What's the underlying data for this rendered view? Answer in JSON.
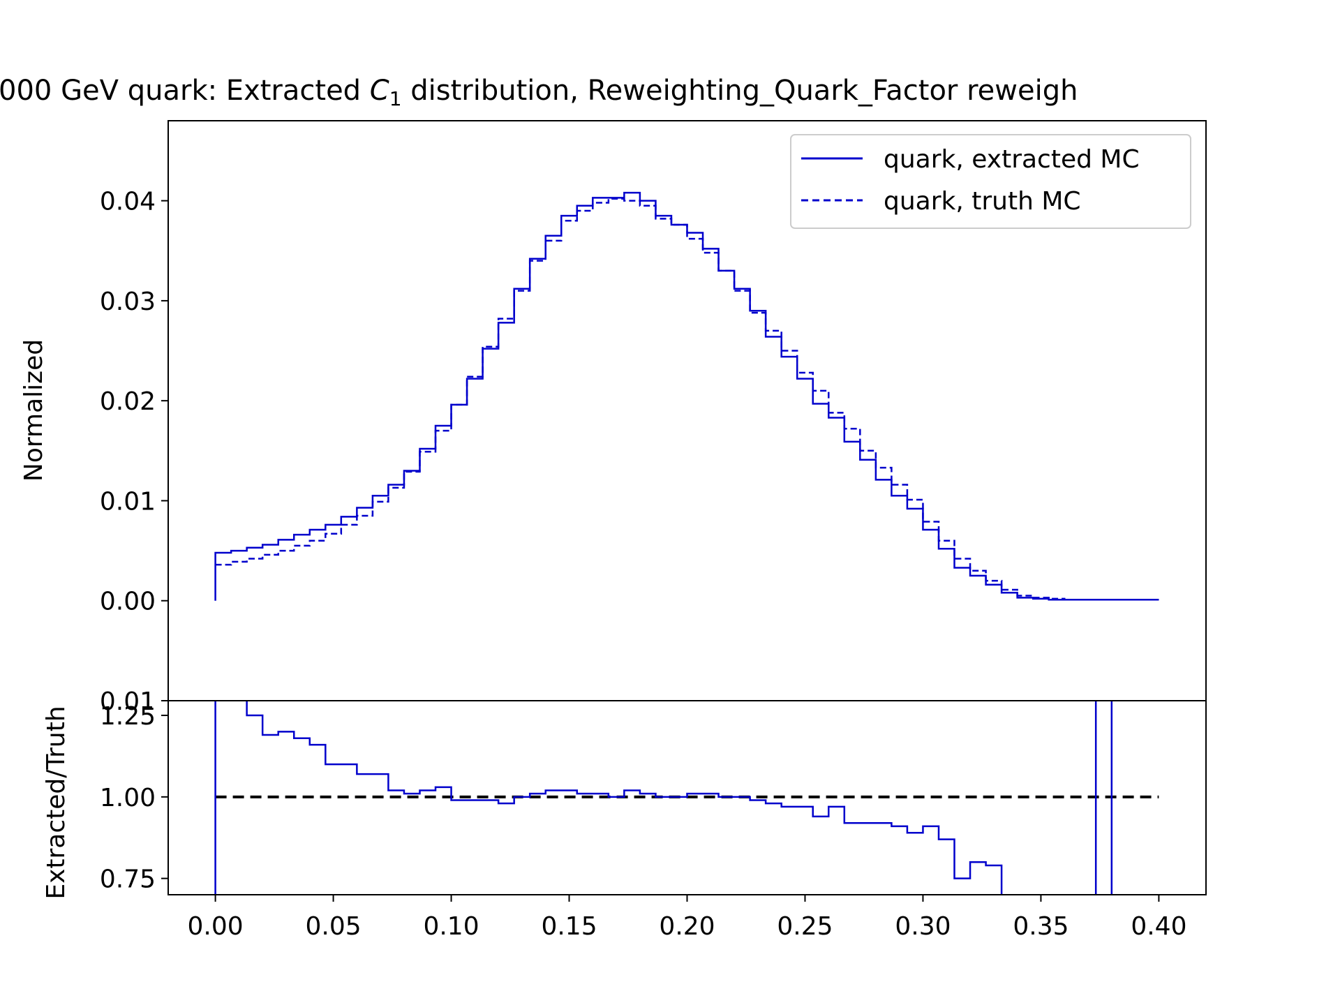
{
  "chart_data": [
    {
      "type": "line",
      "panel": "main",
      "title_prefix": "000 GeV quark: Extracted ",
      "title_symbol": "C",
      "title_subscript": "1",
      "title_suffix": " distribution, Reweighting_Quark_Factor reweigh",
      "xlabel": "",
      "ylabel": "Normalized",
      "xlim": [
        -0.02,
        0.42
      ],
      "ylim": [
        -0.01,
        0.048
      ],
      "yticks": [
        "0.00",
        "0.01",
        "0.02",
        "0.03",
        "0.04"
      ],
      "bottom_tick_label": "0.01",
      "legend_position": "top-right",
      "bin_edges": [
        0.0,
        0.00667,
        0.01333,
        0.02,
        0.02667,
        0.03333,
        0.04,
        0.04667,
        0.05333,
        0.06,
        0.06667,
        0.07333,
        0.08,
        0.08667,
        0.09333,
        0.1,
        0.10667,
        0.11333,
        0.12,
        0.12667,
        0.13333,
        0.14,
        0.14667,
        0.15333,
        0.16,
        0.16667,
        0.17333,
        0.18,
        0.18667,
        0.19333,
        0.2,
        0.20667,
        0.21333,
        0.22,
        0.22667,
        0.23333,
        0.24,
        0.24667,
        0.25333,
        0.26,
        0.26667,
        0.27333,
        0.28,
        0.28667,
        0.29333,
        0.3,
        0.30667,
        0.31333,
        0.32,
        0.32667,
        0.33333,
        0.34,
        0.34667,
        0.35333,
        0.36,
        0.36667,
        0.37333,
        0.38,
        0.38667,
        0.39333,
        0.4
      ],
      "series": [
        {
          "name": "quark, extracted MC",
          "style": "solid",
          "color": "#0000cc",
          "values": [
            0.0048,
            0.005,
            0.0053,
            0.0056,
            0.0061,
            0.0066,
            0.0071,
            0.0076,
            0.0084,
            0.0093,
            0.0105,
            0.0116,
            0.013,
            0.0152,
            0.0175,
            0.0196,
            0.0222,
            0.0252,
            0.0278,
            0.0312,
            0.0342,
            0.0365,
            0.0385,
            0.0395,
            0.0403,
            0.0403,
            0.0408,
            0.04,
            0.0385,
            0.0376,
            0.0368,
            0.0352,
            0.033,
            0.0312,
            0.029,
            0.0264,
            0.0244,
            0.0222,
            0.0197,
            0.0183,
            0.0159,
            0.0141,
            0.0121,
            0.0105,
            0.0092,
            0.0071,
            0.0052,
            0.0033,
            0.0025,
            0.0016,
            0.0008,
            0.0003,
            0.0002,
            0.0001,
            0.0001,
            0.0001,
            0.0001,
            0.0001,
            0.0001,
            0.0001
          ]
        },
        {
          "name": "quark, truth MC",
          "style": "dashed",
          "color": "#0000cc",
          "values": [
            0.0036,
            0.0039,
            0.0042,
            0.0046,
            0.005,
            0.0055,
            0.006,
            0.0067,
            0.0076,
            0.0085,
            0.0099,
            0.0113,
            0.0129,
            0.0149,
            0.017,
            0.0196,
            0.0224,
            0.0254,
            0.0282,
            0.031,
            0.034,
            0.036,
            0.038,
            0.039,
            0.0398,
            0.0402,
            0.04,
            0.0395,
            0.0382,
            0.0376,
            0.0362,
            0.0348,
            0.033,
            0.031,
            0.0288,
            0.027,
            0.025,
            0.0228,
            0.021,
            0.0188,
            0.0172,
            0.015,
            0.0133,
            0.0116,
            0.0101,
            0.0079,
            0.006,
            0.0042,
            0.003,
            0.002,
            0.0011,
            0.0005,
            0.0003,
            0.0002,
            0.0001,
            0.0001,
            0.0001,
            0.0001,
            0.0001,
            0.0001
          ]
        }
      ]
    },
    {
      "type": "line",
      "panel": "ratio",
      "xlabel": "",
      "ylabel": "Extracted/Truth",
      "xlim": [
        -0.02,
        0.42
      ],
      "ylim": [
        0.7,
        1.295
      ],
      "xticks": [
        "0.00",
        "0.05",
        "0.10",
        "0.15",
        "0.20",
        "0.25",
        "0.30",
        "0.35",
        "0.40"
      ],
      "yticks": [
        "0.75",
        "1.00",
        "1.25"
      ],
      "reference_line": 1.0,
      "series": [
        {
          "name": "",
          "style": "solid",
          "color": "#0000cc",
          "bin_edges": [
            0.0,
            0.00667,
            0.01333,
            0.02,
            0.02667,
            0.03333,
            0.04,
            0.04667,
            0.05333,
            0.06,
            0.06667,
            0.07333,
            0.08,
            0.08667,
            0.09333,
            0.1,
            0.10667,
            0.11333,
            0.12,
            0.12667,
            0.13333,
            0.14,
            0.14667,
            0.15333,
            0.16,
            0.16667,
            0.17333,
            0.18,
            0.18667,
            0.19333,
            0.2,
            0.20667,
            0.21333,
            0.22,
            0.22667,
            0.23333,
            0.24,
            0.24667,
            0.25333,
            0.26,
            0.26667,
            0.27333,
            0.28,
            0.28667,
            0.29333,
            0.3,
            0.30667,
            0.31333,
            0.32,
            0.32667,
            0.33333
          ],
          "values": [
            1.3,
            1.3,
            1.25,
            1.19,
            1.2,
            1.18,
            1.16,
            1.1,
            1.1,
            1.07,
            1.07,
            1.02,
            1.01,
            1.02,
            1.03,
            0.99,
            0.99,
            0.99,
            0.98,
            1.0,
            1.01,
            1.02,
            1.02,
            1.01,
            1.01,
            1.0,
            1.02,
            1.01,
            1.0,
            1.0,
            1.01,
            1.01,
            1.0,
            1.0,
            0.99,
            0.98,
            0.97,
            0.97,
            0.94,
            0.97,
            0.92,
            0.92,
            0.92,
            0.91,
            0.89,
            0.91,
            0.87,
            0.75,
            0.8,
            0.79
          ]
        }
      ]
    }
  ]
}
